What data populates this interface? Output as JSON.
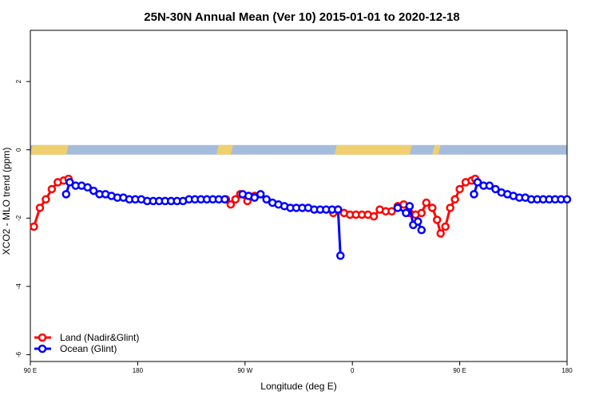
{
  "chart_data": {
    "type": "line",
    "title": "25N-30N Annual Mean (Ver 10)   2015-01-01 to 2020-12-18",
    "xlabel": "Longitude (deg E)",
    "ylabel": "XCO2 - MLO trend (ppm)",
    "x_ticks": [
      {
        "value": 90,
        "label": "90 E"
      },
      {
        "value": 180,
        "label": "180"
      },
      {
        "value": 270,
        "label": "90 W"
      },
      {
        "value": 360,
        "label": "0"
      },
      {
        "value": 450,
        "label": "90 E"
      },
      {
        "value": 540,
        "label": "180"
      }
    ],
    "y_ticks": [
      {
        "value": 2,
        "label": "2"
      },
      {
        "value": 0,
        "label": "0"
      },
      {
        "value": -2,
        "label": "-2"
      },
      {
        "value": -4,
        "label": "-4"
      },
      {
        "value": -6,
        "label": "-6"
      }
    ],
    "xlim": [
      90,
      540
    ],
    "ylim": [
      -6.2,
      3.5
    ],
    "grid": false,
    "legend_position": "bottom-left",
    "land_ocean_band": {
      "land_color": "#f0d06e",
      "ocean_color": "#a6bcdd",
      "land_segments": [
        [
          90,
          122
        ],
        [
          246,
          260
        ],
        [
          278,
          280
        ],
        [
          345,
          410
        ],
        [
          427,
          434
        ]
      ]
    },
    "series": [
      {
        "name": "Land (Nadir&Glint)",
        "color": "#ff0000",
        "points": [
          [
            93,
            -2.25
          ],
          [
            98,
            -1.7
          ],
          [
            103,
            -1.45
          ],
          [
            108,
            -1.15
          ],
          [
            113,
            -0.95
          ],
          [
            118,
            -0.9
          ],
          [
            122,
            -0.85
          ],
          [
            254,
            -1.45
          ],
          [
            258,
            -1.6
          ],
          [
            262,
            -1.45
          ],
          [
            266,
            -1.3
          ],
          [
            272,
            -1.5
          ],
          [
            278,
            -1.35
          ],
          [
            344,
            -1.85
          ],
          [
            348,
            -1.75
          ],
          [
            353,
            -1.85
          ],
          [
            358,
            -1.9
          ],
          [
            363,
            -1.9
          ],
          [
            368,
            -1.9
          ],
          [
            373,
            -1.9
          ],
          [
            378,
            -1.95
          ],
          [
            383,
            -1.75
          ],
          [
            388,
            -1.8
          ],
          [
            393,
            -1.8
          ],
          [
            398,
            -1.65
          ],
          [
            403,
            -1.6
          ],
          [
            408,
            -1.85
          ],
          [
            413,
            -1.9
          ],
          [
            418,
            -1.85
          ],
          [
            422,
            -1.55
          ],
          [
            427,
            -1.7
          ],
          [
            431,
            -2.05
          ],
          [
            434,
            -2.45
          ],
          [
            438,
            -2.25
          ],
          [
            442,
            -1.7
          ],
          [
            446,
            -1.45
          ],
          [
            450,
            -1.15
          ],
          [
            455,
            -0.95
          ],
          [
            460,
            -0.9
          ],
          [
            463,
            -0.85
          ]
        ]
      },
      {
        "name": "Ocean (Glint)",
        "color": "#0000ff",
        "points": [
          [
            120,
            -1.3
          ],
          [
            123,
            -0.95
          ],
          [
            128,
            -1.05
          ],
          [
            133,
            -1.05
          ],
          [
            138,
            -1.1
          ],
          [
            143,
            -1.2
          ],
          [
            148,
            -1.3
          ],
          [
            153,
            -1.3
          ],
          [
            158,
            -1.35
          ],
          [
            163,
            -1.4
          ],
          [
            168,
            -1.4
          ],
          [
            173,
            -1.45
          ],
          [
            178,
            -1.45
          ],
          [
            183,
            -1.45
          ],
          [
            188,
            -1.5
          ],
          [
            193,
            -1.5
          ],
          [
            198,
            -1.5
          ],
          [
            203,
            -1.5
          ],
          [
            208,
            -1.5
          ],
          [
            213,
            -1.5
          ],
          [
            218,
            -1.5
          ],
          [
            223,
            -1.45
          ],
          [
            228,
            -1.45
          ],
          [
            233,
            -1.45
          ],
          [
            238,
            -1.45
          ],
          [
            243,
            -1.45
          ],
          [
            248,
            -1.45
          ],
          [
            253,
            -1.45
          ],
          [
            268,
            -1.3
          ],
          [
            273,
            -1.35
          ],
          [
            278,
            -1.4
          ],
          [
            283,
            -1.3
          ],
          [
            288,
            -1.45
          ],
          [
            293,
            -1.55
          ],
          [
            298,
            -1.6
          ],
          [
            303,
            -1.65
          ],
          [
            308,
            -1.7
          ],
          [
            313,
            -1.7
          ],
          [
            318,
            -1.7
          ],
          [
            323,
            -1.7
          ],
          [
            328,
            -1.75
          ],
          [
            333,
            -1.75
          ],
          [
            338,
            -1.75
          ],
          [
            343,
            -1.75
          ],
          [
            348,
            -1.75
          ],
          [
            350,
            -3.1
          ],
          [
            398,
            -1.7
          ],
          [
            405,
            -1.85
          ],
          [
            408,
            -1.65
          ],
          [
            411,
            -2.2
          ],
          [
            415,
            -2.1
          ],
          [
            418,
            -2.35
          ],
          [
            462,
            -1.3
          ],
          [
            465,
            -0.95
          ],
          [
            470,
            -1.05
          ],
          [
            475,
            -1.05
          ],
          [
            480,
            -1.15
          ],
          [
            485,
            -1.25
          ],
          [
            490,
            -1.3
          ],
          [
            495,
            -1.35
          ],
          [
            500,
            -1.4
          ],
          [
            505,
            -1.4
          ],
          [
            510,
            -1.45
          ],
          [
            515,
            -1.45
          ],
          [
            520,
            -1.45
          ],
          [
            525,
            -1.45
          ],
          [
            530,
            -1.45
          ],
          [
            535,
            -1.45
          ],
          [
            540,
            -1.45
          ]
        ]
      }
    ]
  }
}
